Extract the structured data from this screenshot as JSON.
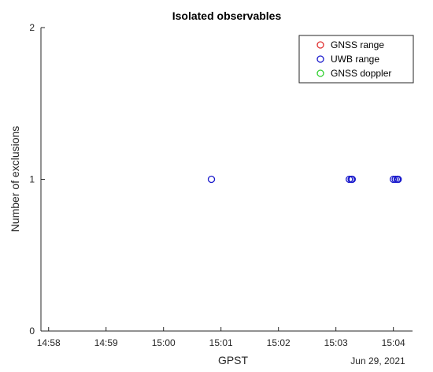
{
  "chart_data": {
    "type": "scatter",
    "title": "Isolated observables",
    "xlabel": "GPST",
    "ylabel": "Number of exclusions",
    "date_label": "Jun 29, 2021",
    "x_unit": "time (GPST)",
    "xlim": [
      "14:57:52",
      "15:04:20"
    ],
    "ylim": [
      0,
      2
    ],
    "x_ticks": [
      "14:58",
      "14:59",
      "15:00",
      "15:01",
      "15:02",
      "15:03",
      "15:04"
    ],
    "y_ticks": [
      "0",
      "1",
      "2"
    ],
    "grid": false,
    "legend_position": "top-right",
    "series": [
      {
        "name": "GNSS range",
        "color": "#e03030",
        "marker": "circle-open",
        "points": []
      },
      {
        "name": "UWB range",
        "color": "#1a1acc",
        "marker": "circle-open",
        "points": [
          {
            "x": "15:00:50",
            "y": 1
          },
          {
            "x": "15:03:14",
            "y": 1
          },
          {
            "x": "15:03:16",
            "y": 1
          },
          {
            "x": "15:03:17",
            "y": 1
          },
          {
            "x": "15:04:00",
            "y": 1
          },
          {
            "x": "15:04:02",
            "y": 1
          },
          {
            "x": "15:04:04",
            "y": 1
          },
          {
            "x": "15:04:05",
            "y": 1
          }
        ]
      },
      {
        "name": "GNSS doppler",
        "color": "#30d030",
        "marker": "circle-open",
        "points": []
      }
    ]
  }
}
